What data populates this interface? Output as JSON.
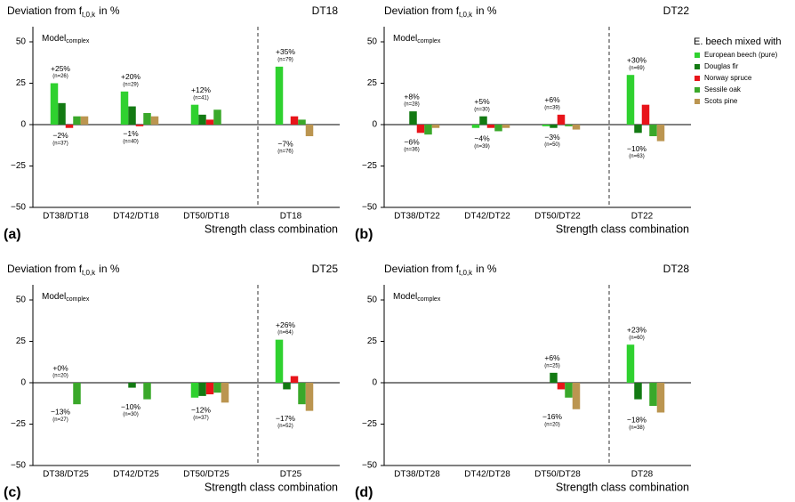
{
  "chart_data": [
    {
      "type": "bar",
      "panel_label": "(a)",
      "title": [
        "Deviation from f",
        "t,0,k",
        "in %"
      ],
      "model_label": [
        "Model",
        "complex"
      ],
      "corner_label": "DT18",
      "xlabel": "Strength class combination",
      "categories": [
        "DT38/DT18",
        "DT42/DT18",
        "DT50/DT18",
        "DT18"
      ],
      "series": [
        {
          "values": [
            25,
            20,
            12,
            35
          ]
        },
        {
          "values": [
            13,
            11,
            6,
            null
          ]
        },
        {
          "values": [
            -2,
            -1,
            3,
            5
          ]
        },
        {
          "values": [
            5,
            7,
            9,
            3
          ]
        },
        {
          "values": [
            5,
            5,
            null,
            -7
          ]
        }
      ],
      "ylim": [
        -50,
        50
      ],
      "yticks": [
        {
          "value": -50,
          "label": "−50"
        },
        {
          "value": -25,
          "label": "−25"
        },
        0,
        25,
        50
      ],
      "annotations": [
        {
          "category": 0,
          "value": 25,
          "label": "+25%",
          "n": "(n=26)",
          "position": "above"
        },
        {
          "category": 0,
          "value": -2,
          "label": "−2%",
          "n": "(n=37)",
          "position": "below"
        },
        {
          "category": 1,
          "value": 20,
          "label": "+20%",
          "n": "(n=29)",
          "position": "above"
        },
        {
          "category": 1,
          "value": -1,
          "label": "−1%",
          "n": "(n=40)",
          "position": "below"
        },
        {
          "category": 2,
          "value": 12,
          "label": "+12%",
          "n": "(n=41)",
          "position": "above"
        },
        {
          "category": 3,
          "value": 35,
          "label": "+35%",
          "n": "(n=79)",
          "position": "above"
        },
        {
          "category": 3,
          "value": -7,
          "label": "−7%",
          "n": "(n=76)",
          "position": "below"
        }
      ]
    },
    {
      "type": "bar",
      "panel_label": "(b)",
      "title": [
        "Deviation from f",
        "t,0,k",
        "in %"
      ],
      "model_label": [
        "Model",
        "complex"
      ],
      "corner_label": "DT22",
      "xlabel": "Strength class combination",
      "categories": [
        "DT38/DT22",
        "DT42/DT22",
        "DT50/DT22",
        "DT22"
      ],
      "series": [
        {
          "values": [
            null,
            -2,
            -1,
            30
          ]
        },
        {
          "values": [
            8,
            5,
            -2,
            -5
          ]
        },
        {
          "values": [
            -5,
            -2,
            6,
            12
          ]
        },
        {
          "values": [
            -6,
            -4,
            -1,
            -7
          ]
        },
        {
          "values": [
            -2,
            -2,
            -3,
            -10
          ]
        }
      ],
      "ylim": [
        -50,
        50
      ],
      "yticks": [
        {
          "value": -50,
          "label": "−50"
        },
        {
          "value": -25,
          "label": "−25"
        },
        0,
        25,
        50
      ],
      "annotations": [
        {
          "category": 0,
          "value": 8,
          "label": "+8%",
          "n": "(n=28)",
          "position": "above"
        },
        {
          "category": 0,
          "value": -6,
          "label": "−6%",
          "n": "(n=36)",
          "position": "below"
        },
        {
          "category": 1,
          "value": 5,
          "label": "+5%",
          "n": "(n=30)",
          "position": "above"
        },
        {
          "category": 1,
          "value": -4,
          "label": "−4%",
          "n": "(n=39)",
          "position": "below"
        },
        {
          "category": 2,
          "value": 6,
          "label": "+6%",
          "n": "(n=39)",
          "position": "above"
        },
        {
          "category": 2,
          "value": -3,
          "label": "−3%",
          "n": "(n=50)",
          "position": "below"
        },
        {
          "category": 3,
          "value": 30,
          "label": "+30%",
          "n": "(n=69)",
          "position": "above"
        },
        {
          "category": 3,
          "value": -10,
          "label": "−10%",
          "n": "(n=63)",
          "position": "below"
        }
      ]
    },
    {
      "type": "bar",
      "panel_label": "(c)",
      "title": [
        "Deviation from f",
        "t,0,k",
        "in %"
      ],
      "model_label": [
        "Model",
        "complex"
      ],
      "corner_label": "DT25",
      "xlabel": "Strength class combination",
      "categories": [
        "DT38/DT25",
        "DT42/DT25",
        "DT50/DT25",
        "DT25"
      ],
      "series": [
        {
          "values": [
            null,
            null,
            -9,
            26
          ]
        },
        {
          "values": [
            null,
            -3,
            -8,
            -4
          ]
        },
        {
          "values": [
            null,
            null,
            -7,
            4
          ]
        },
        {
          "values": [
            -13,
            -10,
            -6,
            -13
          ]
        },
        {
          "values": [
            null,
            null,
            -12,
            -17
          ]
        }
      ],
      "ylim": [
        -50,
        50
      ],
      "yticks": [
        {
          "value": -50,
          "label": "−50"
        },
        {
          "value": -25,
          "label": "−25"
        },
        0,
        25,
        50
      ],
      "annotations": [
        {
          "category": 0,
          "value": 0,
          "label": "+0%",
          "n": "(n=20)",
          "position": "above"
        },
        {
          "category": 0,
          "value": -13,
          "label": "−13%",
          "n": "(n=27)",
          "position": "below"
        },
        {
          "category": 1,
          "value": -10,
          "label": "−10%",
          "n": "(n=30)",
          "position": "below"
        },
        {
          "category": 2,
          "value": -12,
          "label": "−12%",
          "n": "(n=37)",
          "position": "below"
        },
        {
          "category": 3,
          "value": 26,
          "label": "+26%",
          "n": "(n=64)",
          "position": "above"
        },
        {
          "category": 3,
          "value": -17,
          "label": "−17%",
          "n": "(n=52)",
          "position": "below"
        }
      ]
    },
    {
      "type": "bar",
      "panel_label": "(d)",
      "title": [
        "Deviation from f",
        "t,0,k",
        "in %"
      ],
      "model_label": [
        "Model",
        "complex"
      ],
      "corner_label": "DT28",
      "xlabel": "Strength class combination",
      "categories": [
        "DT38/DT28",
        "DT42/DT28",
        "DT50/DT28",
        "DT28"
      ],
      "series": [
        {
          "values": [
            null,
            null,
            null,
            23
          ]
        },
        {
          "values": [
            null,
            null,
            6,
            -10
          ]
        },
        {
          "values": [
            null,
            null,
            -4,
            null
          ]
        },
        {
          "values": [
            null,
            null,
            -9,
            -14
          ]
        },
        {
          "values": [
            null,
            null,
            -16,
            -18
          ]
        }
      ],
      "ylim": [
        -50,
        50
      ],
      "yticks": [
        {
          "value": -50,
          "label": "−50"
        },
        {
          "value": -25,
          "label": "−25"
        },
        0,
        25,
        50
      ],
      "annotations": [
        {
          "category": 2,
          "value": 6,
          "label": "+6%",
          "n": "(n=25)",
          "position": "above"
        },
        {
          "category": 2,
          "value": -16,
          "label": "−16%",
          "n": "(n=20)",
          "position": "below"
        },
        {
          "category": 3,
          "value": 23,
          "label": "+23%",
          "n": "(n=60)",
          "position": "above"
        },
        {
          "category": 3,
          "value": -18,
          "label": "−18%",
          "n": "(n=38)",
          "position": "below"
        }
      ]
    }
  ],
  "legend": {
    "title": "E. beech mixed with",
    "entries": [
      {
        "name": "European beech (pure)",
        "color": "#2fd12f"
      },
      {
        "name": "Douglas fir",
        "color": "#137a13"
      },
      {
        "name": "Norway spruce",
        "color": "#e8141a"
      },
      {
        "name": "Sessile oak",
        "color": "#3aa82a"
      },
      {
        "name": "Scots pine",
        "color": "#bb9550"
      }
    ]
  }
}
